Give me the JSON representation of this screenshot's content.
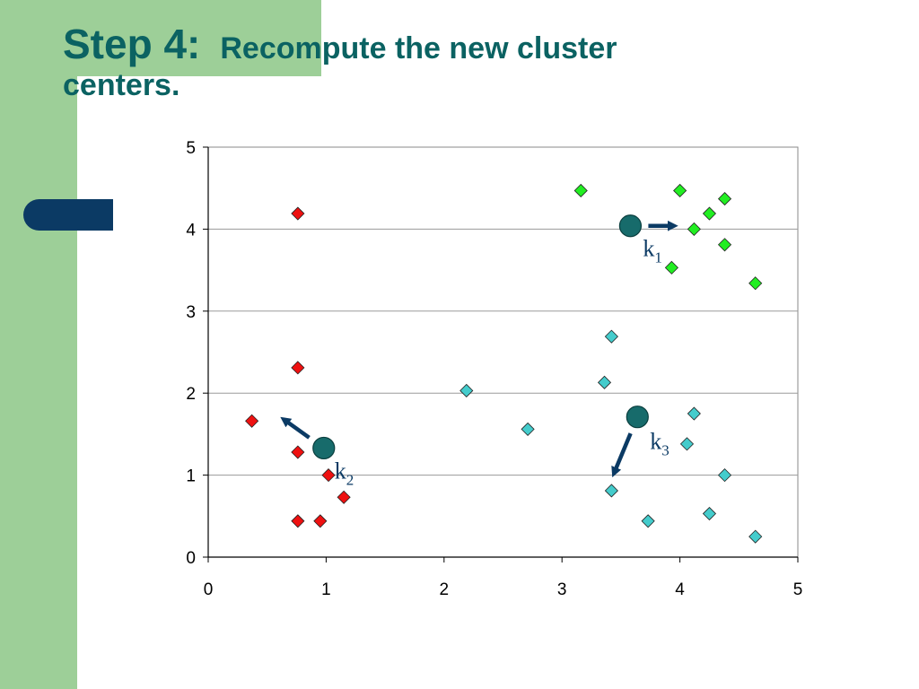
{
  "slide": {
    "title_step": "Step 4:",
    "title_rest": "Recompute the new cluster",
    "title_line2": "centers."
  },
  "colors": {
    "sidebar": "#9dcf98",
    "tab": "#0b3a64",
    "title": "#0b6262",
    "cluster1": "#22ee22",
    "cluster2": "#ee1111",
    "cluster3": "#44cccc",
    "center": "#176b6b",
    "arrow": "#0b3a64"
  },
  "chart_data": {
    "type": "scatter",
    "xlim": [
      0,
      5
    ],
    "ylim": [
      0,
      5
    ],
    "x_ticks": [
      "0",
      "1",
      "2",
      "3",
      "4",
      "5"
    ],
    "y_ticks": [
      "0",
      "1",
      "2",
      "3",
      "4",
      "5"
    ],
    "grid": "horizontal",
    "series": [
      {
        "color": "#22ee22",
        "points": [
          [
            3.16,
            4.47
          ],
          [
            4.0,
            4.47
          ],
          [
            4.38,
            4.37
          ],
          [
            4.25,
            4.19
          ],
          [
            4.12,
            4.0
          ],
          [
            4.38,
            3.81
          ],
          [
            3.93,
            3.53
          ],
          [
            4.64,
            3.34
          ]
        ]
      },
      {
        "color": "#ee1111",
        "points": [
          [
            0.76,
            4.19
          ],
          [
            0.76,
            2.31
          ],
          [
            0.37,
            1.66
          ],
          [
            0.76,
            1.28
          ],
          [
            1.02,
            1.0
          ],
          [
            1.15,
            0.73
          ],
          [
            0.76,
            0.44
          ],
          [
            0.95,
            0.44
          ]
        ]
      },
      {
        "color": "#44cccc",
        "points": [
          [
            2.19,
            2.03
          ],
          [
            3.42,
            2.69
          ],
          [
            3.36,
            2.13
          ],
          [
            2.71,
            1.56
          ],
          [
            4.12,
            1.75
          ],
          [
            4.06,
            1.38
          ],
          [
            4.38,
            1.0
          ],
          [
            3.42,
            0.81
          ],
          [
            3.73,
            0.44
          ],
          [
            4.25,
            0.53
          ],
          [
            4.64,
            0.25
          ]
        ]
      }
    ],
    "centers": [
      {
        "label": "k",
        "sub": "1",
        "x": 3.58,
        "y": 4.04,
        "arrow_to": [
          3.95,
          4.04
        ]
      },
      {
        "label": "k",
        "sub": "2",
        "x": 0.98,
        "y": 1.33,
        "arrow_to": [
          0.64,
          1.68
        ]
      },
      {
        "label": "k",
        "sub": "3",
        "x": 3.64,
        "y": 1.71,
        "arrow_to": [
          3.44,
          1.02
        ]
      }
    ]
  }
}
